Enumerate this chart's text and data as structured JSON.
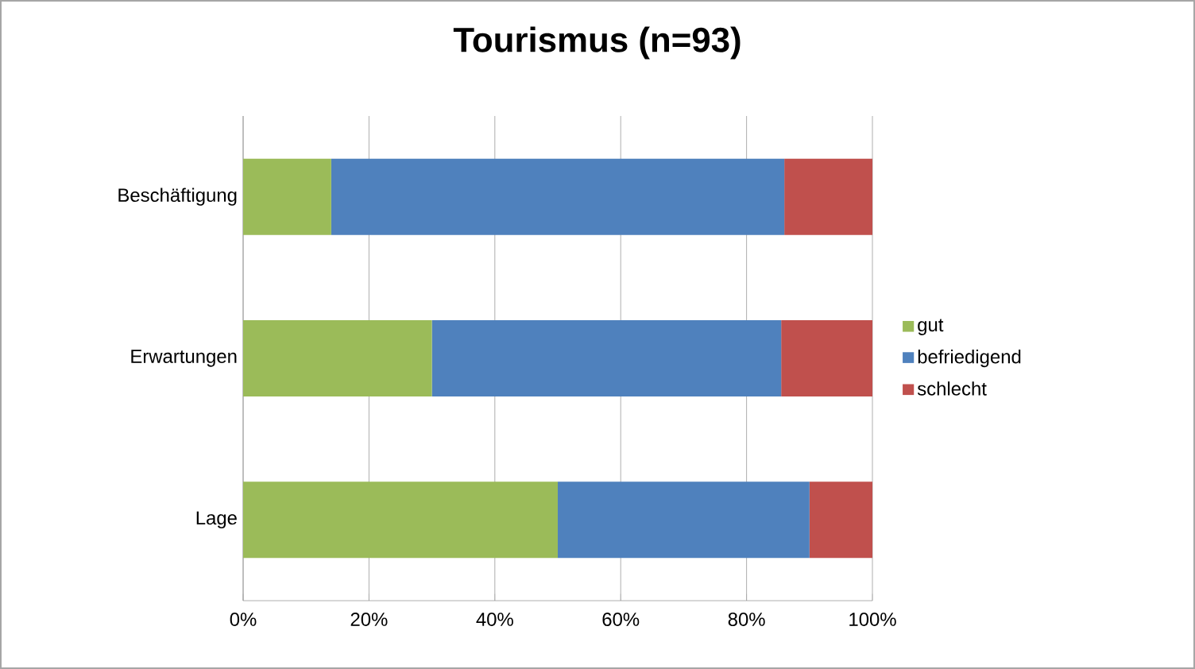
{
  "chart_data": {
    "type": "bar",
    "orientation": "horizontal",
    "stacked": true,
    "title": "Tourismus (n=93)",
    "categories": [
      "Beschäftigung",
      "Erwartungen",
      "Lage"
    ],
    "series": [
      {
        "name": "gut",
        "color": "#9bbb59",
        "values": [
          14,
          30,
          50
        ]
      },
      {
        "name": "befriedigend",
        "color": "#4f81bd",
        "values": [
          72,
          55.5,
          40
        ]
      },
      {
        "name": "schlecht",
        "color": "#c0504d",
        "values": [
          14,
          14.5,
          10
        ]
      }
    ],
    "xlim": [
      0,
      100
    ],
    "xticks": [
      {
        "value": 0,
        "label": "0%"
      },
      {
        "value": 20,
        "label": "20%"
      },
      {
        "value": 40,
        "label": "40%"
      },
      {
        "value": 60,
        "label": "60%"
      },
      {
        "value": 80,
        "label": "80%"
      },
      {
        "value": 100,
        "label": "100%"
      }
    ],
    "grid": "x",
    "legend": "right"
  }
}
